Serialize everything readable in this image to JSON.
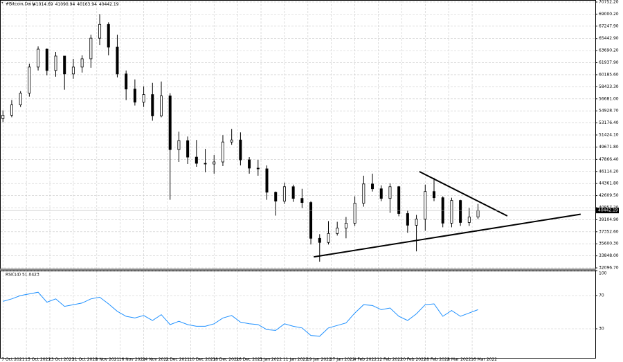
{
  "chart_data": [
    {
      "type": "candlestick",
      "title": "#Bitcoin,Daily",
      "header_values": [
        41014.69,
        41090.94,
        40163.94,
        40442.19
      ],
      "x": [
        "2021-10-07",
        "2021-10-10",
        "2021-10-13",
        "2021-10-16",
        "2021-10-19",
        "2021-10-22",
        "2021-10-25",
        "2021-10-28",
        "2021-10-31",
        "2021-11-03",
        "2021-11-06",
        "2021-11-09",
        "2021-11-12",
        "2021-11-15",
        "2021-11-18",
        "2021-11-21",
        "2021-11-24",
        "2021-11-27",
        "2021-11-30",
        "2021-12-03",
        "2021-12-06",
        "2021-12-09",
        "2021-12-12",
        "2021-12-15",
        "2021-12-18",
        "2021-12-21",
        "2021-12-24",
        "2021-12-27",
        "2021-12-30",
        "2022-01-02",
        "2022-01-05",
        "2022-01-08",
        "2022-01-11",
        "2022-01-14",
        "2022-01-17",
        "2022-01-20",
        "2022-01-23",
        "2022-01-26",
        "2022-01-29",
        "2022-02-01",
        "2022-02-04",
        "2022-02-07",
        "2022-02-10",
        "2022-02-13",
        "2022-02-16",
        "2022-02-19",
        "2022-02-22",
        "2022-02-25",
        "2022-02-28",
        "2022-03-03",
        "2022-03-06",
        "2022-03-09",
        "2022-03-12",
        "2022-03-15",
        "2022-03-18"
      ],
      "open": [
        53800,
        54300,
        55800,
        57500,
        61300,
        63900,
        60800,
        62900,
        60300,
        61300,
        62500,
        65500,
        67500,
        64200,
        60300,
        58100,
        56200,
        57300,
        54200,
        57100,
        49300,
        50600,
        48200,
        47300,
        47200,
        47500,
        50400,
        50700,
        47800,
        46600,
        46500,
        43100,
        41800,
        43900,
        42200,
        41600,
        36400,
        35800,
        37100,
        37900,
        38600,
        41500,
        44300,
        43600,
        42200,
        43900,
        40000,
        38300,
        39200,
        43200,
        42300,
        38600,
        41900,
        38700,
        39500
      ],
      "high": [
        55000,
        56500,
        57800,
        61800,
        64300,
        64000,
        63500,
        62900,
        62500,
        63000,
        66000,
        69000,
        67800,
        66000,
        60800,
        59500,
        58500,
        59000,
        59200,
        57500,
        51900,
        51200,
        50700,
        49400,
        48500,
        51400,
        52300,
        51800,
        48200,
        47800,
        47000,
        43200,
        44500,
        44200,
        43600,
        41800,
        37000,
        38900,
        38800,
        39500,
        42500,
        45500,
        45800,
        44100,
        44400,
        44000,
        40400,
        39800,
        44200,
        45200,
        42500,
        42300,
        42000,
        40800,
        41400
      ],
      "low": [
        53300,
        54000,
        55500,
        57000,
        60800,
        60100,
        59900,
        58000,
        59600,
        60500,
        61200,
        64500,
        63000,
        59800,
        56500,
        55700,
        55500,
        53500,
        54000,
        42000,
        47500,
        47200,
        46800,
        46000,
        45800,
        46900,
        50000,
        47000,
        45800,
        45500,
        42000,
        39700,
        41400,
        41700,
        40800,
        35500,
        33000,
        35500,
        36800,
        36400,
        38200,
        41000,
        43200,
        41800,
        40100,
        39600,
        37200,
        34500,
        37500,
        41800,
        38000,
        38000,
        38200,
        38200,
        39200
      ],
      "close": [
        54300,
        55800,
        57500,
        61300,
        63900,
        60800,
        62900,
        60300,
        61300,
        62500,
        65500,
        67500,
        64200,
        60300,
        58100,
        56200,
        57300,
        54200,
        57100,
        49300,
        50600,
        48200,
        47300,
        47200,
        47500,
        50400,
        50700,
        47800,
        46600,
        46500,
        43100,
        41800,
        43900,
        42200,
        41600,
        36400,
        35800,
        37100,
        37900,
        38600,
        41500,
        44300,
        43600,
        42200,
        43900,
        40000,
        38300,
        39200,
        43200,
        42300,
        38600,
        41900,
        38700,
        39500,
        40442.19
      ],
      "xlim": [
        "2021-10-06",
        "2022-04-27"
      ],
      "xticks": [
        {
          "value": "2021-10-07",
          "label": "7 Oct 2021"
        },
        {
          "value": "2021-10-15",
          "label": "15 Oct 2021"
        },
        {
          "value": "2021-10-23",
          "label": "23 Oct 2021"
        },
        {
          "value": "2021-10-31",
          "label": "31 Oct 2021"
        },
        {
          "value": "2021-11-08",
          "label": "8 Nov 2021"
        },
        {
          "value": "2021-11-16",
          "label": "16 Nov 2021"
        },
        {
          "value": "2021-11-24",
          "label": "24 Nov 2021"
        },
        {
          "value": "2021-12-02",
          "label": "2 Dec 2021"
        },
        {
          "value": "2021-12-10",
          "label": "10 Dec 2021"
        },
        {
          "value": "2021-12-18",
          "label": "18 Dec 2021"
        },
        {
          "value": "2021-12-26",
          "label": "26 Dec 2021"
        },
        {
          "value": "2022-01-03",
          "label": "3 Jan 2022"
        },
        {
          "value": "2022-01-11",
          "label": "11 Jan 2022"
        },
        {
          "value": "2022-01-19",
          "label": "19 Jan 2022"
        },
        {
          "value": "2022-01-27",
          "label": "27 Jan 2022"
        },
        {
          "value": "2022-02-04",
          "label": "4 Feb 2022"
        },
        {
          "value": "2022-02-12",
          "label": "12 Feb 2022"
        },
        {
          "value": "2022-02-20",
          "label": "20 Feb 2022"
        },
        {
          "value": "2022-02-28",
          "label": "28 Feb 2022"
        },
        {
          "value": "2022-03-08",
          "label": "8 Mar 2022"
        },
        {
          "value": "2022-03-16",
          "label": "16 Mar 2022"
        }
      ],
      "ylim": [
        32000,
        71050
      ],
      "yticks": [
        {
          "value": 70752.2,
          "label": "70752.20"
        },
        {
          "value": 69000.2,
          "label": "69000.20"
        },
        {
          "value": 67247.9,
          "label": "67247.90"
        },
        {
          "value": 65442.9,
          "label": "65442.90"
        },
        {
          "value": 63690.2,
          "label": "63690.20"
        },
        {
          "value": 61937.9,
          "label": "61937.90"
        },
        {
          "value": 60185.6,
          "label": "60185.60"
        },
        {
          "value": 58433.3,
          "label": "58433.30"
        },
        {
          "value": 56681,
          "label": "56681.00"
        },
        {
          "value": 54928.7,
          "label": "54928.70"
        },
        {
          "value": 53176.4,
          "label": "53176.40"
        },
        {
          "value": 51424.1,
          "label": "51424.10"
        },
        {
          "value": 49671.8,
          "label": "49671.80"
        },
        {
          "value": 47866.4,
          "label": "47866.40"
        },
        {
          "value": 46114.2,
          "label": "46114.20"
        },
        {
          "value": 44361.8,
          "label": "44361.80"
        },
        {
          "value": 42609.5,
          "label": "42609.50"
        },
        {
          "value": 40857.2,
          "label": "40857.20"
        },
        {
          "value": 39104.9,
          "label": "39104.90"
        },
        {
          "value": 37352.6,
          "label": "37352.60"
        },
        {
          "value": 35600.3,
          "label": "35600.30"
        },
        {
          "value": 33848,
          "label": "33848.00"
        },
        {
          "value": 32096.7,
          "label": "32096.70"
        }
      ],
      "grid": true,
      "up_color": "#ffffff",
      "down_color": "#000000",
      "line_color": "#000000",
      "trendlines": [
        {
          "x": [
            "2022-02-26",
            "2022-03-28"
          ],
          "y": [
            46100,
            39650
          ]
        },
        {
          "x": [
            "2022-01-21",
            "2022-04-22"
          ],
          "y": [
            33700,
            39900
          ]
        }
      ]
    },
    {
      "type": "line",
      "title": "RSI(14) 51.0423",
      "x": [
        "2021-10-07",
        "2021-10-10",
        "2021-10-13",
        "2021-10-16",
        "2021-10-19",
        "2021-10-22",
        "2021-10-25",
        "2021-10-28",
        "2021-10-31",
        "2021-11-03",
        "2021-11-06",
        "2021-11-09",
        "2021-11-12",
        "2021-11-15",
        "2021-11-18",
        "2021-11-21",
        "2021-11-24",
        "2021-11-27",
        "2021-11-30",
        "2021-12-03",
        "2021-12-06",
        "2021-12-09",
        "2021-12-12",
        "2021-12-15",
        "2021-12-18",
        "2021-12-21",
        "2021-12-24",
        "2021-12-27",
        "2021-12-30",
        "2022-01-02",
        "2022-01-05",
        "2022-01-08",
        "2022-01-11",
        "2022-01-14",
        "2022-01-17",
        "2022-01-20",
        "2022-01-23",
        "2022-01-26",
        "2022-01-29",
        "2022-02-01",
        "2022-02-04",
        "2022-02-07",
        "2022-02-10",
        "2022-02-13",
        "2022-02-16",
        "2022-02-19",
        "2022-02-22",
        "2022-02-25",
        "2022-02-28",
        "2022-03-03",
        "2022-03-06",
        "2022-03-09",
        "2022-03-12",
        "2022-03-15",
        "2022-03-18"
      ],
      "values": [
        63,
        66,
        70,
        72,
        74,
        62,
        66,
        57,
        59,
        61,
        66,
        68,
        60,
        51,
        45,
        43,
        46,
        40,
        47,
        35,
        39,
        35,
        33,
        33,
        36,
        43,
        46,
        38,
        36,
        35,
        29,
        28,
        36,
        33,
        31,
        22,
        21,
        31,
        34,
        37,
        49,
        59,
        58,
        53,
        55,
        45,
        40,
        48,
        59,
        60,
        45,
        52,
        45,
        49,
        53
      ],
      "color": "#1e90ff",
      "ylim": [
        -5,
        100
      ],
      "yticks": [
        100,
        70,
        30
      ],
      "grid": true
    }
  ]
}
